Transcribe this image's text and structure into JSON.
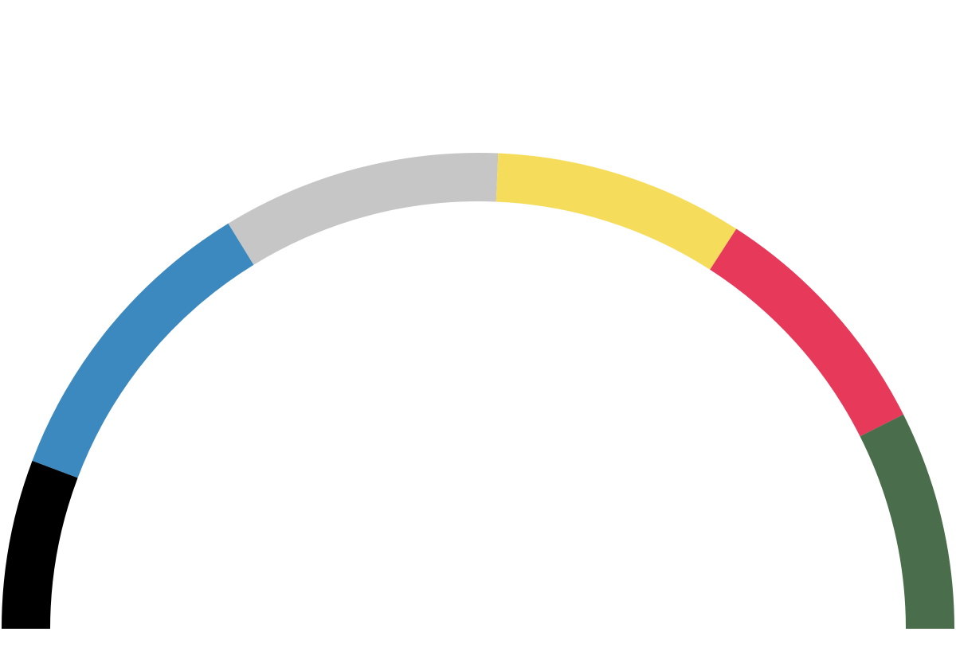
{
  "chart_data": {
    "type": "pie",
    "variant": "semicircle-donut",
    "title": "",
    "legend": "none",
    "series": [
      {
        "label": "",
        "value": 17,
        "color": "#000000"
      },
      {
        "label": "",
        "value": 31,
        "color": "#3b89bf"
      },
      {
        "label": "",
        "value": 28,
        "color": "#c6c6c6"
      },
      {
        "label": "",
        "value": 25,
        "color": "#f6dc5b"
      },
      {
        "label": "",
        "value": 25,
        "color": "#e73a5b"
      },
      {
        "label": "",
        "value": 22,
        "color": "#4a6d4b"
      }
    ]
  }
}
